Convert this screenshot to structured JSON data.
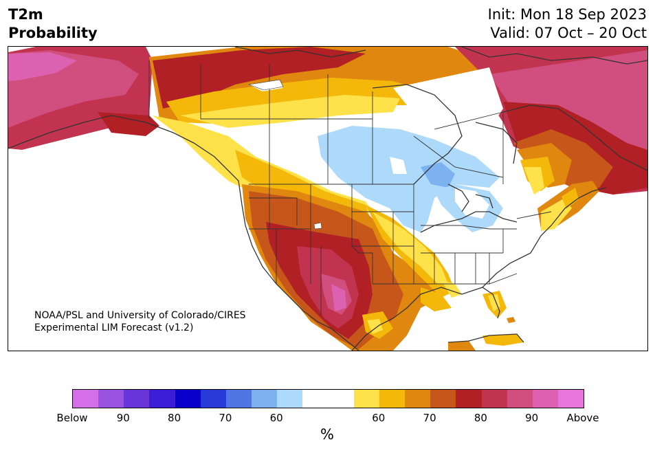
{
  "header": {
    "title_line1": "T2m",
    "title_line2": "Probability",
    "init": "Init: Mon 18 Sep 2023",
    "valid": "Valid: 07 Oct – 20 Oct"
  },
  "map": {
    "credit_line1": "NOAA/PSL and University of Colorado/CIRES",
    "credit_line2": "Experimental LIM Forecast (v1.2)"
  },
  "colorbar": {
    "unit": "%",
    "colors": [
      "#d56fe8",
      "#9a52e0",
      "#6a35d8",
      "#3a1dd4",
      "#0a00cc",
      "#2a3ad8",
      "#5076e4",
      "#7cb2f0",
      "#add9fb",
      "#ffffff",
      "#ffffff",
      "#ffe24a",
      "#f3b80a",
      "#e08710",
      "#c7561a",
      "#b12025",
      "#c23350",
      "#d04f7f",
      "#dd61b1",
      "#e875dc"
    ],
    "ticks": [
      "Below",
      "90",
      "80",
      "70",
      "60",
      "60",
      "70",
      "80",
      "90",
      "Above"
    ]
  }
}
